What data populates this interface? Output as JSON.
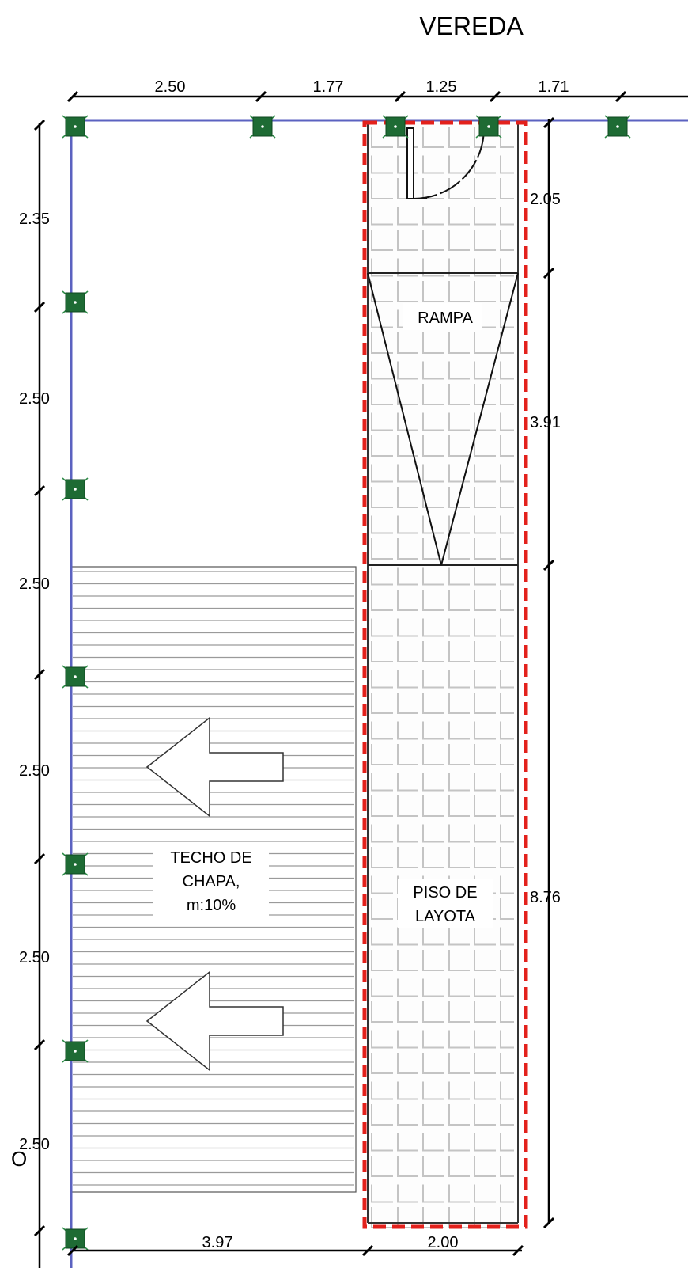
{
  "title": "VEREDA",
  "labels": {
    "ramp": "RAMPA",
    "floor_line1": "PISO DE",
    "floor_line2": "LAYOTA",
    "roof_line1": "TECHO DE",
    "roof_line2": "CHAPA,",
    "roof_line3": "m:10%",
    "edge_mark": "O"
  },
  "dimensions": {
    "top": [
      "2.50",
      "1.77",
      "1.25",
      "1.71"
    ],
    "left": [
      "2.35",
      "2.50",
      "2.50",
      "2.50",
      "2.50",
      "2.50"
    ],
    "right": [
      "2.05",
      "3.91",
      "8.76"
    ],
    "bottom": [
      "3.97",
      "2.00"
    ]
  },
  "colors": {
    "wall_line": "#5b62c0",
    "column": "#1e6b34",
    "highlight": "#e3211c",
    "tile_grid": "#c4c4c4",
    "roof_hatch": "#9a9a9a"
  },
  "icons": {
    "column": "structural-column-icon",
    "arrow": "slope-arrow-left-icon"
  }
}
